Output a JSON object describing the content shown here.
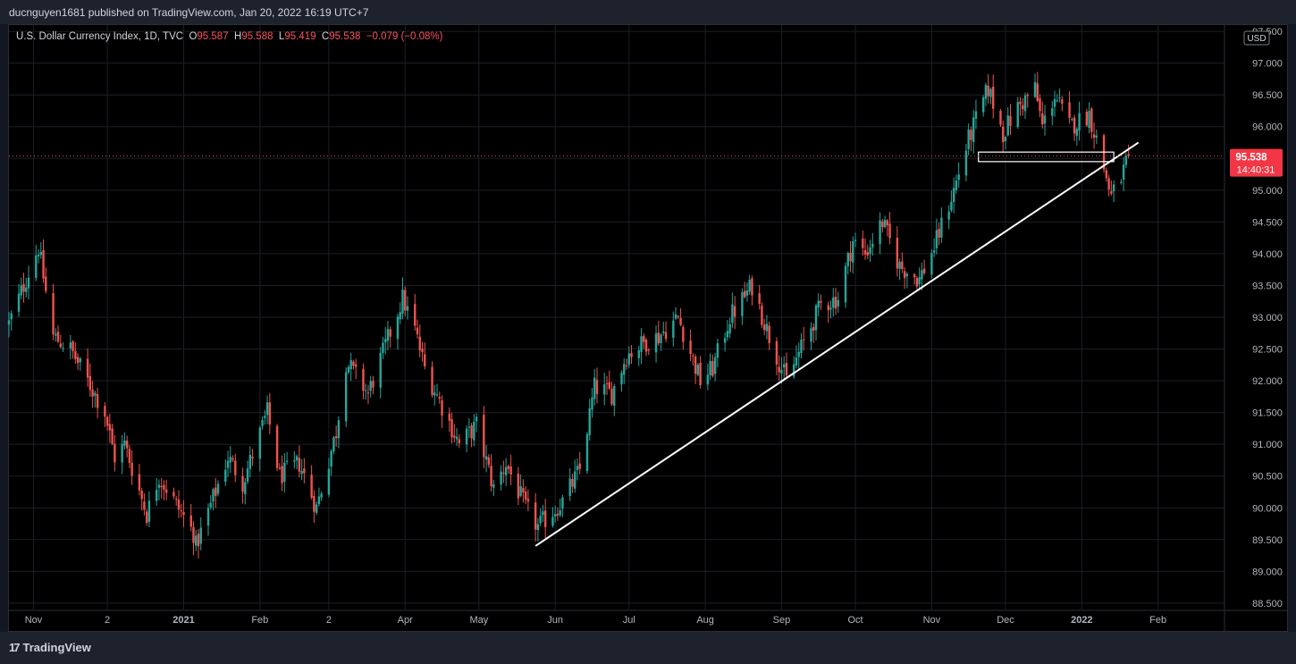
{
  "header": {
    "published_text": "ducnguyen1681 published on TradingView.com, Jan 20, 2022 16:19 UTC+7"
  },
  "legend": {
    "symbol": "U.S. Dollar Currency Index, 1D, TVC",
    "open_label": "O",
    "open": "95.587",
    "high_label": "H",
    "high": "95.588",
    "low_label": "L",
    "low": "95.419",
    "close_label": "C",
    "close": "95.538",
    "change": "−0.079 (−0.08%)"
  },
  "price_axis": {
    "currency": "USD",
    "last_price": "95.538",
    "countdown": "14:40:31"
  },
  "footer": {
    "brand": "TradingView"
  },
  "colors": {
    "up": "#26a69a",
    "down": "#ef5350",
    "background": "#000000",
    "trendline": "#ffffff"
  },
  "chart_data": {
    "type": "candlestick",
    "title": "U.S. Dollar Currency Index, 1D, TVC",
    "y_ticks": [
      "88.500",
      "89.000",
      "89.500",
      "90.000",
      "90.500",
      "91.000",
      "91.500",
      "92.000",
      "92.500",
      "93.000",
      "93.500",
      "94.000",
      "94.500",
      "95.000",
      "95.500",
      "96.000",
      "96.500",
      "97.000",
      "97.500"
    ],
    "x_ticks": [
      {
        "label": "Nov",
        "date": "2020-11-01"
      },
      {
        "label": "2",
        "date": "2020-12-01"
      },
      {
        "label": "2021",
        "date": "2021-01-01"
      },
      {
        "label": "Feb",
        "date": "2021-02-01"
      },
      {
        "label": "2",
        "date": "2021-03-01"
      },
      {
        "label": "Apr",
        "date": "2021-04-01"
      },
      {
        "label": "May",
        "date": "2021-05-01"
      },
      {
        "label": "Jun",
        "date": "2021-06-01"
      },
      {
        "label": "Jul",
        "date": "2021-07-01"
      },
      {
        "label": "Aug",
        "date": "2021-08-01"
      },
      {
        "label": "Sep",
        "date": "2021-09-01"
      },
      {
        "label": "Oct",
        "date": "2021-10-01"
      },
      {
        "label": "Nov",
        "date": "2021-11-01"
      },
      {
        "label": "Dec",
        "date": "2021-12-01"
      },
      {
        "label": "2022",
        "date": "2022-01-01"
      },
      {
        "label": "Feb",
        "date": "2022-02-01"
      }
    ],
    "ylim": [
      88.4,
      97.6
    ],
    "xlim": [
      "2020-10-22",
      "2022-02-28"
    ],
    "last_price": 95.538,
    "anchors": [
      {
        "date": "2020-10-22",
        "close": 92.9
      },
      {
        "date": "2020-11-03",
        "close": 94.1
      },
      {
        "date": "2020-11-09",
        "close": 92.7
      },
      {
        "date": "2020-11-16",
        "close": 92.5
      },
      {
        "date": "2020-11-30",
        "close": 91.5
      },
      {
        "date": "2020-12-04",
        "close": 90.8
      },
      {
        "date": "2020-12-08",
        "close": 91.0
      },
      {
        "date": "2020-12-17",
        "close": 89.9
      },
      {
        "date": "2020-12-22",
        "close": 90.5
      },
      {
        "date": "2021-01-05",
        "close": 89.6
      },
      {
        "date": "2021-01-06",
        "close": 89.4
      },
      {
        "date": "2021-01-19",
        "close": 90.8
      },
      {
        "date": "2021-01-25",
        "close": 90.4
      },
      {
        "date": "2021-02-04",
        "close": 91.5
      },
      {
        "date": "2021-02-09",
        "close": 90.5
      },
      {
        "date": "2021-02-17",
        "close": 90.7
      },
      {
        "date": "2021-02-24",
        "close": 90.0
      },
      {
        "date": "2021-03-04",
        "close": 91.2
      },
      {
        "date": "2021-03-08",
        "close": 92.3
      },
      {
        "date": "2021-03-17",
        "close": 91.8
      },
      {
        "date": "2021-03-31",
        "close": 93.3
      },
      {
        "date": "2021-04-05",
        "close": 92.8
      },
      {
        "date": "2021-04-09",
        "close": 92.2
      },
      {
        "date": "2021-04-16",
        "close": 91.6
      },
      {
        "date": "2021-04-23",
        "close": 91.0
      },
      {
        "date": "2021-04-30",
        "close": 91.3
      },
      {
        "date": "2021-05-07",
        "close": 90.3
      },
      {
        "date": "2021-05-12",
        "close": 90.7
      },
      {
        "date": "2021-05-20",
        "close": 90.0
      },
      {
        "date": "2021-05-25",
        "close": 89.7
      },
      {
        "date": "2021-06-04",
        "close": 90.1
      },
      {
        "date": "2021-06-11",
        "close": 90.6
      },
      {
        "date": "2021-06-17",
        "close": 91.9
      },
      {
        "date": "2021-06-24",
        "close": 91.8
      },
      {
        "date": "2021-06-30",
        "close": 92.4
      },
      {
        "date": "2021-07-07",
        "close": 92.6
      },
      {
        "date": "2021-07-13",
        "close": 92.7
      },
      {
        "date": "2021-07-21",
        "close": 93.0
      },
      {
        "date": "2021-07-30",
        "close": 92.0
      },
      {
        "date": "2021-08-04",
        "close": 92.2
      },
      {
        "date": "2021-08-11",
        "close": 93.0
      },
      {
        "date": "2021-08-20",
        "close": 93.5
      },
      {
        "date": "2021-08-27",
        "close": 92.7
      },
      {
        "date": "2021-09-03",
        "close": 92.0
      },
      {
        "date": "2021-09-10",
        "close": 92.6
      },
      {
        "date": "2021-09-17",
        "close": 93.2
      },
      {
        "date": "2021-09-24",
        "close": 93.3
      },
      {
        "date": "2021-09-30",
        "close": 94.2
      },
      {
        "date": "2021-10-05",
        "close": 94.0
      },
      {
        "date": "2021-10-12",
        "close": 94.5
      },
      {
        "date": "2021-10-19",
        "close": 93.8
      },
      {
        "date": "2021-10-27",
        "close": 93.6
      },
      {
        "date": "2021-11-02",
        "close": 94.1
      },
      {
        "date": "2021-11-10",
        "close": 95.0
      },
      {
        "date": "2021-11-16",
        "close": 95.8
      },
      {
        "date": "2021-11-24",
        "close": 96.6
      },
      {
        "date": "2021-11-30",
        "close": 95.9
      },
      {
        "date": "2021-12-06",
        "close": 96.3
      },
      {
        "date": "2021-12-13",
        "close": 96.6
      },
      {
        "date": "2021-12-16",
        "close": 96.0
      },
      {
        "date": "2021-12-21",
        "close": 96.5
      },
      {
        "date": "2021-12-27",
        "close": 96.0
      },
      {
        "date": "2022-01-04",
        "close": 96.2
      },
      {
        "date": "2022-01-07",
        "close": 95.8
      },
      {
        "date": "2022-01-13",
        "close": 94.9
      },
      {
        "date": "2022-01-17",
        "close": 95.2
      },
      {
        "date": "2022-01-20",
        "close": 95.538
      }
    ],
    "annotations": [
      {
        "type": "trendline",
        "from": {
          "date": "2021-05-24",
          "price": 89.4
        },
        "to": {
          "date": "2022-01-24",
          "price": 95.75
        }
      },
      {
        "type": "rectangle",
        "from": {
          "date": "2021-11-20",
          "price": 95.6
        },
        "to": {
          "date": "2022-01-14",
          "price": 95.45
        }
      },
      {
        "type": "hline",
        "price": 95.538,
        "style": "dotted"
      }
    ]
  }
}
